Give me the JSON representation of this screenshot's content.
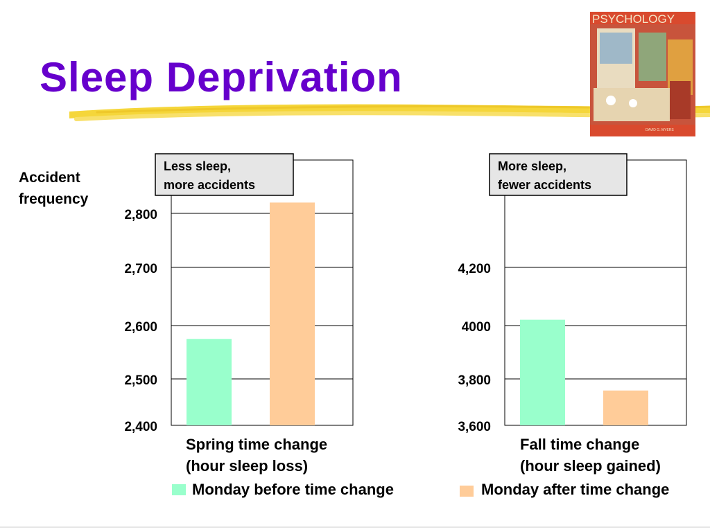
{
  "slide": {
    "title": "Sleep Deprivation",
    "cover": {
      "title": "PSYCHOLOGY",
      "author": "DAVID G. MYERS"
    }
  },
  "colors": {
    "title": "#6600cc",
    "highlight": "#f5d63a",
    "before": "#99ffcc",
    "after": "#ffcc99"
  },
  "chart_data": [
    {
      "type": "bar",
      "ylabel": "Accident frequency",
      "ylim": [
        2400,
        2850
      ],
      "yticks": [
        2400,
        2500,
        2600,
        2700,
        2800
      ],
      "ytick_labels": [
        "2,400",
        "2,500",
        "2,600",
        "2,700",
        "2,800"
      ],
      "categories": [
        "Monday before time change",
        "Monday after time change"
      ],
      "values": [
        2575,
        2820
      ],
      "annotation": [
        "Less sleep,",
        "more accidents"
      ],
      "xlabel_lines": [
        "Spring time change",
        "(hour sleep loss)"
      ],
      "grid": true
    },
    {
      "type": "bar",
      "ylabel": "",
      "ylim": [
        3600,
        4400
      ],
      "yticks": [
        3600,
        3800,
        4000,
        4200
      ],
      "ytick_labels": [
        "3,600",
        "3,800",
        "4000",
        "4,200"
      ],
      "categories": [
        "Monday before time change",
        "Monday after time change"
      ],
      "values": [
        4020,
        3750
      ],
      "annotation": [
        "More sleep,",
        "fewer accidents"
      ],
      "xlabel_lines": [
        "Fall time change",
        "(hour sleep gained)"
      ],
      "grid": true
    }
  ],
  "legend": [
    {
      "label": "Monday before time change",
      "color": "#99ffcc"
    },
    {
      "label": "Monday after time change",
      "color": "#ffcc99"
    }
  ]
}
